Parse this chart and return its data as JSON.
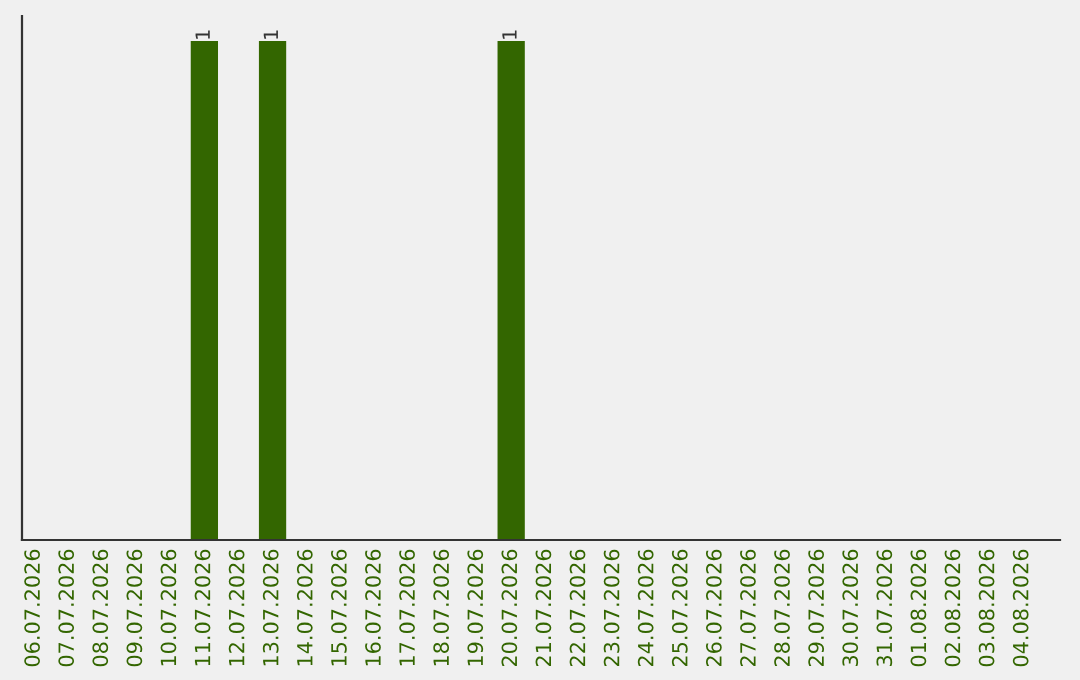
{
  "chart_data": {
    "type": "bar",
    "categories": [
      "06.07.2026",
      "07.07.2026",
      "08.07.2026",
      "09.07.2026",
      "10.07.2026",
      "11.07.2026",
      "12.07.2026",
      "13.07.2026",
      "14.07.2026",
      "15.07.2026",
      "16.07.2026",
      "17.07.2026",
      "18.07.2026",
      "19.07.2026",
      "20.07.2026",
      "21.07.2026",
      "22.07.2026",
      "23.07.2026",
      "24.07.2026",
      "25.07.2026",
      "26.07.2026",
      "27.07.2026",
      "28.07.2026",
      "29.07.2026",
      "30.07.2026",
      "31.07.2026",
      "01.08.2026",
      "02.08.2026",
      "03.08.2026",
      "04.08.2026"
    ],
    "values": [
      0,
      0,
      0,
      0,
      0,
      1,
      0,
      1,
      0,
      0,
      0,
      0,
      0,
      0,
      1,
      0,
      0,
      0,
      0,
      0,
      0,
      0,
      0,
      0,
      0,
      0,
      0,
      0,
      0,
      0
    ],
    "value_labels": [
      null,
      null,
      null,
      null,
      null,
      "1",
      null,
      "1",
      null,
      null,
      null,
      null,
      null,
      null,
      "1",
      null,
      null,
      null,
      null,
      null,
      null,
      null,
      null,
      null,
      null,
      null,
      null,
      null,
      null,
      null
    ],
    "color": "#336600",
    "tick_labels": "x",
    "grid": false,
    "legend": false
  }
}
